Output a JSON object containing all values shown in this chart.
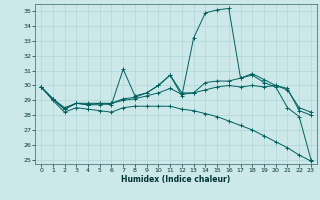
{
  "xlabel": "Humidex (Indice chaleur)",
  "bg_color": "#cce8e8",
  "grid_color": "#b0d8d8",
  "line_color": "#006060",
  "xlim": [
    -0.5,
    23.5
  ],
  "ylim": [
    24.7,
    35.5
  ],
  "yticks": [
    25,
    26,
    27,
    28,
    29,
    30,
    31,
    32,
    33,
    34,
    35
  ],
  "xticks": [
    0,
    1,
    2,
    3,
    4,
    5,
    6,
    7,
    8,
    9,
    10,
    11,
    12,
    13,
    14,
    15,
    16,
    17,
    18,
    19,
    20,
    21,
    22,
    23
  ],
  "series": [
    {
      "x": [
        0,
        1,
        2,
        3,
        4,
        5,
        6,
        7,
        8,
        9,
        10,
        11,
        12,
        13,
        14,
        15,
        16,
        17,
        18,
        19,
        20,
        21,
        22,
        23
      ],
      "y": [
        29.9,
        29.1,
        28.4,
        28.8,
        28.7,
        28.8,
        28.7,
        31.1,
        29.3,
        29.5,
        30.0,
        30.7,
        29.3,
        33.2,
        34.9,
        35.1,
        35.2,
        30.5,
        30.7,
        30.2,
        29.9,
        28.5,
        27.9,
        25.0
      ]
    },
    {
      "x": [
        0,
        1,
        2,
        3,
        4,
        5,
        6,
        7,
        8,
        9,
        10,
        11,
        12,
        13,
        14,
        15,
        16,
        17,
        18,
        19,
        20,
        21,
        22,
        23
      ],
      "y": [
        29.9,
        29.1,
        28.5,
        28.8,
        28.8,
        28.8,
        28.8,
        29.1,
        29.2,
        29.5,
        30.0,
        30.7,
        29.5,
        29.5,
        30.2,
        30.3,
        30.3,
        30.5,
        30.8,
        30.4,
        30.0,
        29.7,
        28.5,
        28.2
      ]
    },
    {
      "x": [
        0,
        1,
        2,
        3,
        4,
        5,
        6,
        7,
        8,
        9,
        10,
        11,
        12,
        13,
        14,
        15,
        16,
        17,
        18,
        19,
        20,
        21,
        22,
        23
      ],
      "y": [
        29.9,
        29.1,
        28.4,
        28.8,
        28.7,
        28.7,
        28.8,
        29.0,
        29.1,
        29.3,
        29.5,
        29.8,
        29.4,
        29.5,
        29.7,
        29.9,
        30.0,
        29.9,
        30.0,
        29.9,
        30.0,
        29.8,
        28.3,
        28.0
      ]
    },
    {
      "x": [
        0,
        1,
        2,
        3,
        4,
        5,
        6,
        7,
        8,
        9,
        10,
        11,
        12,
        13,
        14,
        15,
        16,
        17,
        18,
        19,
        20,
        21,
        22,
        23
      ],
      "y": [
        29.9,
        29.0,
        28.2,
        28.5,
        28.4,
        28.3,
        28.2,
        28.5,
        28.6,
        28.6,
        28.6,
        28.6,
        28.4,
        28.3,
        28.1,
        27.9,
        27.6,
        27.3,
        27.0,
        26.6,
        26.2,
        25.8,
        25.3,
        24.9
      ]
    }
  ]
}
